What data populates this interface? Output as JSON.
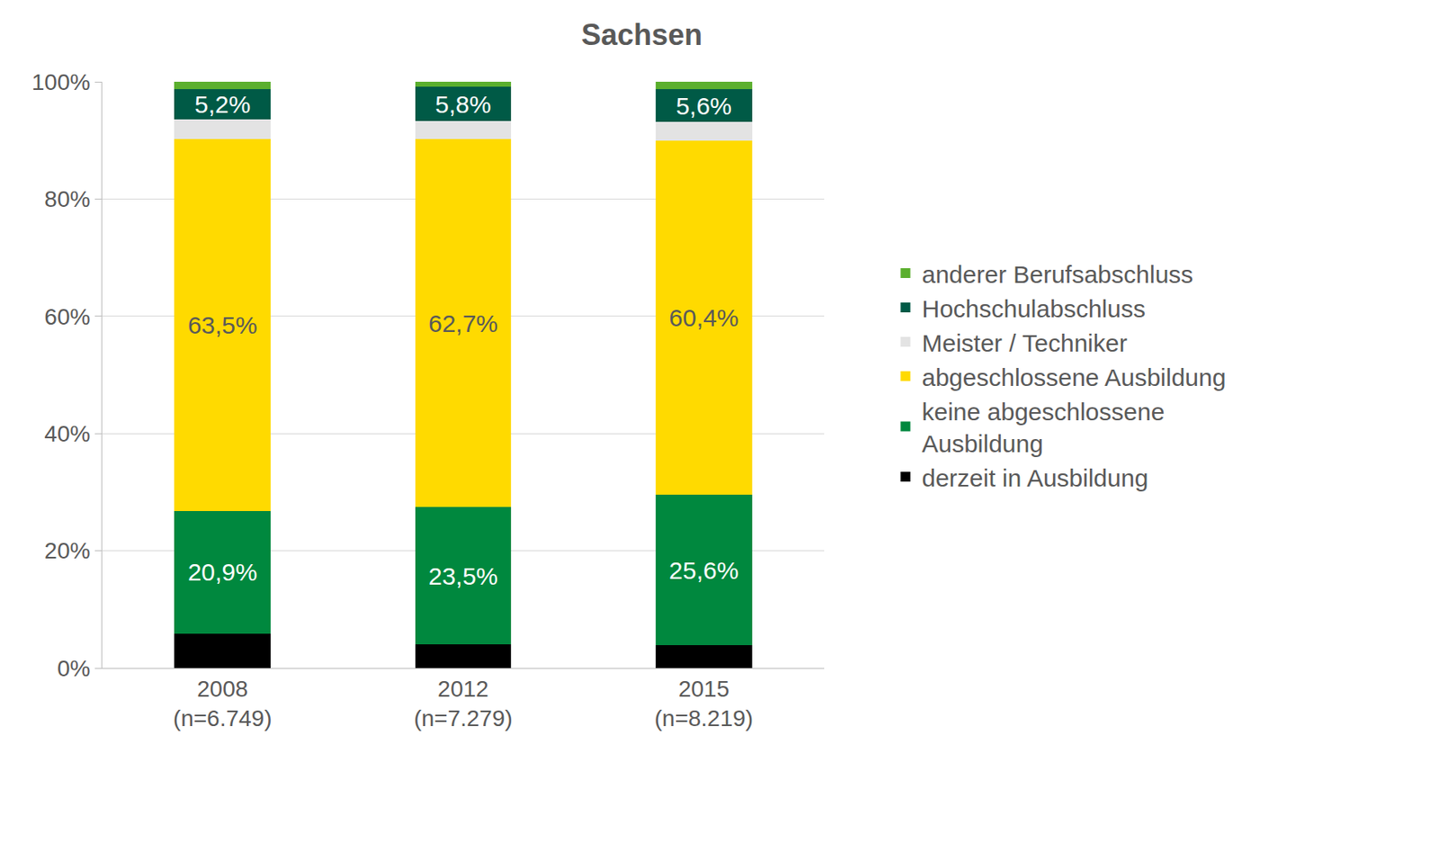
{
  "chart_data": {
    "type": "bar",
    "title": "Sachsen",
    "stacked": true,
    "grid": true,
    "legend": "right",
    "categories": [
      "2008\n(n=6.749)",
      "2012\n(n=7.279)",
      "2015\n(n=8.219)"
    ],
    "ylim": [
      0,
      100
    ],
    "yticks": [
      {
        "value": 0,
        "label": "0%"
      },
      {
        "value": 20,
        "label": "20%"
      },
      {
        "value": 40,
        "label": "40%"
      },
      {
        "value": 60,
        "label": "60%"
      },
      {
        "value": 80,
        "label": "80%"
      },
      {
        "value": 100,
        "label": "100%"
      }
    ],
    "series": [
      {
        "name": "derzeit in Ausbildung",
        "color": "#000000",
        "values": [
          5.9,
          4.0,
          3.9
        ]
      },
      {
        "name": "keine abgeschlossene\nAusbildung",
        "color": "#00883E",
        "values": [
          20.9,
          23.5,
          25.6
        ],
        "data_labels": true,
        "value_labels": [
          "20,9%",
          "23,5%",
          "25,6%"
        ]
      },
      {
        "name": "abgeschlossene Ausbildung",
        "color": "#FFDA00",
        "values": [
          63.5,
          62.7,
          60.4
        ],
        "data_labels": true,
        "value_labels": [
          "63,5%",
          "62,7%",
          "60,4%"
        ]
      },
      {
        "name": "Meister / Techniker",
        "color": "#E3E3E3",
        "values": [
          3.3,
          3.1,
          3.2
        ]
      },
      {
        "name": "Hochschulabschluss",
        "color": "#005A46",
        "values": [
          5.2,
          5.8,
          5.6
        ],
        "data_labels": true,
        "value_labels": [
          "5,2%",
          "5,8%",
          "5,6%"
        ]
      },
      {
        "name": "anderer Berufsabschluss",
        "color": "#5BAF2E",
        "values": [
          1.2,
          0.9,
          1.3
        ]
      }
    ]
  }
}
